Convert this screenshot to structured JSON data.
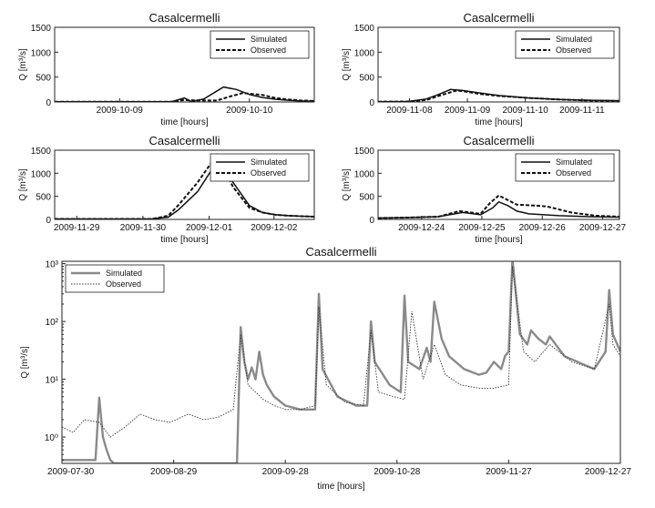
{
  "chart_data": [
    {
      "type": "line",
      "title": "Casalcermelli",
      "xlabel": "time [hours]",
      "ylabel": "Q [m³/s]",
      "x_ticks": [
        "2009-10-09",
        "2009-10-10"
      ],
      "xlim": [
        0,
        2.0
      ],
      "ylim": [
        0,
        1500
      ],
      "y_ticks": [
        0,
        500,
        1000,
        1500
      ],
      "legend": "top-right",
      "grid": false,
      "series": [
        {
          "name": "Simulated",
          "x": [
            0,
            0.5,
            0.9,
            1.0,
            1.05,
            1.15,
            1.3,
            1.4,
            1.5,
            1.6,
            1.7,
            1.8,
            1.9,
            2.0
          ],
          "y": [
            5,
            5,
            5,
            80,
            10,
            60,
            300,
            250,
            150,
            90,
            55,
            35,
            20,
            15
          ]
        },
        {
          "name": "Observed",
          "x": [
            0,
            0.5,
            0.9,
            1.0,
            1.1,
            1.25,
            1.35,
            1.45,
            1.6,
            1.7,
            1.8,
            1.9,
            2.0
          ],
          "y": [
            5,
            5,
            5,
            40,
            30,
            30,
            110,
            180,
            140,
            80,
            50,
            30,
            20
          ]
        }
      ]
    },
    {
      "type": "line",
      "title": "Casalcermelli",
      "xlabel": "time [hours]",
      "ylabel": "Q [m³/s]",
      "x_ticks": [
        "2009-11-08",
        "2009-11-09",
        "2009-11-10",
        "2009-11-11"
      ],
      "xlim": [
        0,
        4.0
      ],
      "ylim": [
        0,
        1500
      ],
      "y_ticks": [
        0,
        500,
        1000,
        1500
      ],
      "legend": "top-right",
      "grid": false,
      "series": [
        {
          "name": "Simulated",
          "x": [
            0,
            0.5,
            0.8,
            1.0,
            1.2,
            1.4,
            1.7,
            2.0,
            2.5,
            3.0,
            3.5,
            4.0
          ],
          "y": [
            5,
            10,
            60,
            150,
            250,
            230,
            180,
            130,
            80,
            50,
            35,
            25
          ]
        },
        {
          "name": "Observed",
          "x": [
            0,
            0.5,
            0.8,
            1.0,
            1.3,
            1.5,
            1.7,
            2.0,
            2.5,
            3.0,
            3.5,
            4.0
          ],
          "y": [
            5,
            10,
            40,
            120,
            230,
            200,
            160,
            120,
            80,
            50,
            30,
            20
          ]
        }
      ]
    },
    {
      "type": "line",
      "title": "Casalcermelli",
      "xlabel": "time [hours]",
      "ylabel": "Q [m³/s]",
      "x_ticks": [
        "2009-11-29",
        "2009-11-30",
        "2009-12-01",
        "2009-12-02"
      ],
      "xlim": [
        0,
        4.0
      ],
      "ylim": [
        0,
        1500
      ],
      "y_ticks": [
        0,
        500,
        1000,
        1500
      ],
      "legend": "top-right",
      "grid": false,
      "series": [
        {
          "name": "Simulated",
          "x": [
            0,
            1.5,
            1.75,
            1.9,
            2.2,
            2.5,
            2.75,
            3.0,
            3.2,
            3.4,
            3.6,
            3.8,
            4.0
          ],
          "y": [
            10,
            10,
            50,
            200,
            600,
            1250,
            800,
            300,
            150,
            100,
            80,
            70,
            60
          ]
        },
        {
          "name": "Observed",
          "x": [
            0,
            1.5,
            1.75,
            1.9,
            2.2,
            2.5,
            2.75,
            3.0,
            3.2,
            3.4,
            3.6,
            3.8,
            4.0
          ],
          "y": [
            10,
            10,
            80,
            300,
            800,
            1400,
            700,
            250,
            150,
            100,
            80,
            70,
            60
          ]
        }
      ]
    },
    {
      "type": "line",
      "title": "Casalcermelli",
      "xlabel": "time [hours]",
      "ylabel": "Q [m³/s]",
      "x_ticks": [
        "2009-12-24",
        "2009-12-25",
        "2009-12-26",
        "2009-12-27"
      ],
      "xlim": [
        0,
        4.0
      ],
      "ylim": [
        0,
        1500
      ],
      "y_ticks": [
        0,
        500,
        1000,
        1500
      ],
      "legend": "top-right",
      "grid": false,
      "series": [
        {
          "name": "Simulated",
          "x": [
            0,
            0.5,
            1.0,
            1.4,
            1.7,
            1.9,
            2.0,
            2.15,
            2.3,
            2.5,
            3.0,
            3.5,
            4.0
          ],
          "y": [
            30,
            40,
            60,
            150,
            100,
            250,
            380,
            300,
            180,
            120,
            80,
            60,
            50
          ]
        },
        {
          "name": "Observed",
          "x": [
            0,
            0.5,
            1.0,
            1.35,
            1.7,
            1.85,
            2.0,
            2.3,
            2.6,
            2.8,
            3.2,
            3.6,
            4.0
          ],
          "y": [
            30,
            40,
            60,
            180,
            120,
            350,
            520,
            320,
            300,
            280,
            150,
            80,
            60
          ]
        }
      ]
    },
    {
      "type": "line",
      "title": "Casalcermelli",
      "xlabel": "time [hours]",
      "ylabel": "Q [m³/s]",
      "yscale": "log",
      "x_ticks": [
        "2009-07-30",
        "2009-08-29",
        "2009-09-28",
        "2009-10-28",
        "2009-11-27",
        "2009-12-27"
      ],
      "xlim": [
        "2009-07-30",
        "2009-12-27"
      ],
      "ylim": [
        0.35,
        1100
      ],
      "y_ticks": [
        "10⁰",
        "10¹",
        "10²",
        "10³"
      ],
      "legend": "top-left",
      "grid": false,
      "series": [
        {
          "name": "Simulated",
          "x": [
            "2009-07-30",
            "2009-08-08",
            "2009-08-09",
            "2009-08-10",
            "2009-08-11",
            "2009-08-12",
            "2009-08-13",
            "2009-09-15",
            "2009-09-16",
            "2009-09-17",
            "2009-09-18",
            "2009-09-19",
            "2009-09-20",
            "2009-09-21",
            "2009-09-22",
            "2009-09-23",
            "2009-09-25",
            "2009-09-28",
            "2009-10-02",
            "2009-10-06",
            "2009-10-07",
            "2009-10-08",
            "2009-10-12",
            "2009-10-17",
            "2009-10-20",
            "2009-10-21",
            "2009-10-22",
            "2009-10-26",
            "2009-10-29",
            "2009-10-30",
            "2009-10-31",
            "2009-11-03",
            "2009-11-05",
            "2009-11-06",
            "2009-11-07",
            "2009-11-09",
            "2009-11-11",
            "2009-11-15",
            "2009-11-19",
            "2009-11-21",
            "2009-11-23",
            "2009-11-25",
            "2009-11-26",
            "2009-11-27",
            "2009-11-28",
            "2009-11-30",
            "2009-12-02",
            "2009-12-03",
            "2009-12-05",
            "2009-12-07",
            "2009-12-08",
            "2009-12-12",
            "2009-12-20",
            "2009-12-23",
            "2009-12-24",
            "2009-12-25",
            "2009-12-27"
          ],
          "y": [
            0.4,
            0.4,
            4.8,
            1.0,
            0.6,
            0.4,
            0.35,
            0.35,
            80,
            20,
            10,
            16,
            10,
            30,
            12,
            8,
            5,
            3.5,
            3.0,
            3.0,
            300,
            15,
            5,
            3.5,
            3.5,
            100,
            20,
            8,
            6,
            280,
            20,
            15,
            35,
            20,
            220,
            50,
            25,
            15,
            12,
            13,
            20,
            15,
            25,
            30,
            1200,
            60,
            40,
            70,
            50,
            40,
            55,
            25,
            15,
            30,
            350,
            60,
            30
          ]
        },
        {
          "name": "Observed",
          "x": [
            "2009-07-30",
            "2009-08-02",
            "2009-08-05",
            "2009-08-09",
            "2009-08-12",
            "2009-08-16",
            "2009-08-20",
            "2009-08-24",
            "2009-08-28",
            "2009-09-02",
            "2009-09-06",
            "2009-09-10",
            "2009-09-14",
            "2009-09-16",
            "2009-09-18",
            "2009-09-20",
            "2009-09-22",
            "2009-09-25",
            "2009-09-28",
            "2009-10-02",
            "2009-10-06",
            "2009-10-07",
            "2009-10-09",
            "2009-10-14",
            "2009-10-19",
            "2009-10-21",
            "2009-10-23",
            "2009-10-27",
            "2009-10-30",
            "2009-11-01",
            "2009-11-04",
            "2009-11-07",
            "2009-11-10",
            "2009-11-14",
            "2009-11-19",
            "2009-11-23",
            "2009-11-27",
            "2009-11-28",
            "2009-12-01",
            "2009-12-04",
            "2009-12-08",
            "2009-12-14",
            "2009-12-20",
            "2009-12-24",
            "2009-12-25",
            "2009-12-27"
          ],
          "y": [
            1.5,
            1.2,
            2.0,
            1.8,
            1.0,
            1.5,
            2.5,
            2.0,
            1.8,
            2.5,
            2.0,
            2.2,
            3.0,
            60,
            8,
            6,
            4.5,
            3.5,
            3.0,
            3.0,
            3.5,
            180,
            8,
            4.0,
            3.5,
            70,
            6,
            5,
            4.5,
            150,
            10,
            40,
            12,
            8,
            7,
            7,
            8,
            900,
            30,
            20,
            40,
            20,
            15,
            200,
            40,
            25
          ]
        }
      ]
    }
  ]
}
